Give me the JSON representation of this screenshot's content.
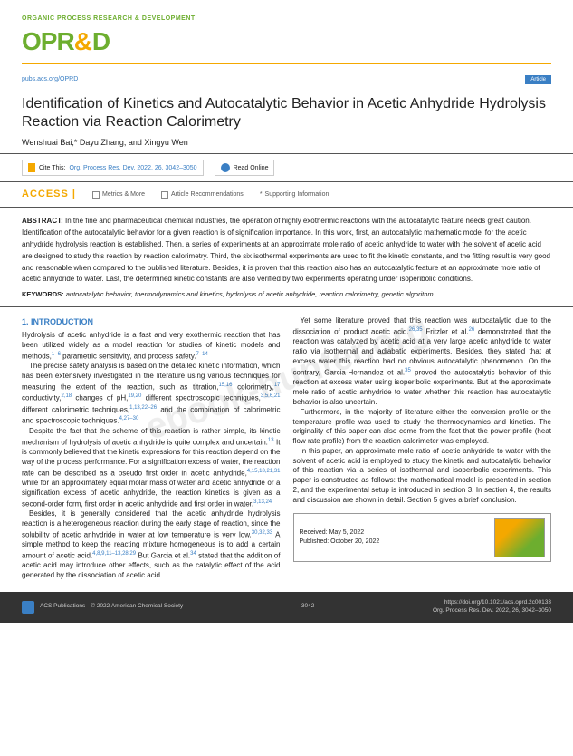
{
  "header": {
    "journal_tag": "ORGANIC PROCESS RESEARCH & DEVELOPMENT",
    "logo_main": "OPR",
    "logo_amp": "&",
    "logo_d": "D",
    "pubs_link": "pubs.acs.org/OPRD",
    "article_tag": "Article"
  },
  "title": "Identification of Kinetics and Autocatalytic Behavior in Acetic Anhydride Hydrolysis Reaction via Reaction Calorimetry",
  "authors": "Wenshuai Bai,* Dayu Zhang, and Xingyu Wen",
  "cite": {
    "label": "Cite This:",
    "ref": "Org. Process Res. Dev. 2022, 26, 3042–3050",
    "read": "Read Online"
  },
  "access": {
    "title": "ACCESS |",
    "metrics": "Metrics & More",
    "recs": "Article Recommendations",
    "si": "Supporting Information"
  },
  "abstract": {
    "label": "ABSTRACT: ",
    "text": "In the fine and pharmaceutical chemical industries, the operation of highly exothermic reactions with the autocatalytic feature needs great caution. Identification of the autocatalytic behavior for a given reaction is of signification importance. In this work, first, an autocatalytic mathematic model for the acetic anhydride hydrolysis reaction is established. Then, a series of experiments at an approximate mole ratio of acetic anhydride to water with the solvent of acetic acid are designed to study this reaction by reaction calorimetry. Third, the six isothermal experiments are used to fit the kinetic constants, and the fitting result is very good and reasonable when compared to the published literature. Besides, it is proven that this reaction also has an autocatalytic feature at an approximate mole ratio of acetic anhydride to water. Last, the determined kinetic constants are also verified by two experiments operating under isoperibolic conditions.",
    "kw_label": "KEYWORDS: ",
    "kw": "autocatalytic behavior, thermodynamics and kinetics, hydrolysis of acetic anhydride, reaction calorimetry, genetic algorithm"
  },
  "body": {
    "section": "1. INTRODUCTION",
    "l1": "Hydrolysis of acetic anhydride is a fast and very exothermic reaction that has been utilized widely as a model reaction for studies of kinetic models and methods,",
    "l1s": "1–6",
    "l1b": " parametric sensitivity, and process safety.",
    "l1s2": "7–14",
    "l2": "The precise safety analysis is based on the detailed kinetic information, which has been extensively investigated in the literature using various techniques for measuring the extent of the reaction, such as titration,",
    "l2s": "15,16",
    "l2b": " colorimetry,",
    "l2s2": "17",
    "l2c": " conductivity,",
    "l2s3": "2,18",
    "l2d": " changes of pH,",
    "l2s4": "19,20",
    "l2e": " different spectroscopic techniques,",
    "l2s5": "3,5,6,21",
    "l2f": " different calorimetric techniques,",
    "l2s6": "1,13,22–26",
    "l2g": " and the combination of calorimetric and spectroscopic techniques.",
    "l2s7": "4,27–30",
    "l3": "Despite the fact that the scheme of this reaction is rather simple, its kinetic mechanism of hydrolysis of acetic anhydride is quite complex and uncertain.",
    "l3s": "13",
    "l3b": " It is commonly believed that the kinetic expressions for this reaction depend on the way of the process performance. For a signification excess of water, the reaction rate can be described as a pseudo first order in acetic anhydride,",
    "l3s2": "4,15,18,21,31",
    "l3c": " while for an approximately equal molar mass of water and acetic anhydride or a signification excess of acetic anhydride, the reaction kinetics is given as a second-order form, first order in acetic anhydride and first order in water.",
    "l3s3": "3,13,24",
    "l4": "Besides, it is generally considered that the acetic anhydride hydrolysis reaction is a heterogeneous reaction during the early stage of reaction, since the solubility of acetic anhydride in water at low temperature is very low.",
    "l4s": "30,32,33",
    "l4b": " A simple method to keep the reacting mixture homogeneous is to add a certain amount of acetic acid.",
    "l4s2": "4,8,9,11–13,28,29",
    "l4c": " But Garcia et al.",
    "l4s3": "34",
    "l4d": " stated that the addition of acetic acid may introduce other effects, such as the catalytic effect of the acid generated by the dissociation of acetic acid.",
    "r1": "Yet some literature proved that this reaction was autocatalytic due to the dissociation of product acetic acid.",
    "r1s": "26,35",
    "r1b": " Fritzler et al.",
    "r1s2": "26",
    "r1c": " demonstrated that the reaction was catalyzed by acetic acid at a very large acetic anhydride to water ratio via isothermal and adiabatic experiments. Besides, they stated that at excess water this reaction had no obvious autocatalytic phenomenon. On the contrary, Garcia-Hernandez et al.",
    "r1s3": "35",
    "r1d": " proved the autocatalytic behavior of this reaction at excess water using isoperibolic experiments. But at the approximate mole ratio of acetic anhydride to water whether this reaction has autocatalytic behavior is also uncertain.",
    "r2": "Furthermore, in the majority of literature either the conversion profile or the temperature profile was used to study the thermodynamics and kinetics. The originality of this paper can also come from the fact that the power profile (heat flow rate profile) from the reaction calorimeter was employed.",
    "r3": "In this paper, an approximate mole ratio of acetic anhydride to water with the solvent of acetic acid is employed to study the kinetic and autocatalytic behavior of this reaction via a series of isothermal and isoperibolic experiments. This paper is constructed as follows: the mathematical model is presented in section 2, and the experimental setup is introduced in section 3. In section 4, the results and discussion are shown in detail. Section 5 gives a brief conclusion.",
    "recv_l": "Received:",
    "recv_v": "May 5, 2022",
    "pub_l": "Published:",
    "pub_v": "October 20, 2022"
  },
  "footer": {
    "pub": "ACS Publications",
    "copy": "© 2022 American Chemical Society",
    "page": "3042",
    "doi": "https://doi.org/10.1021/acs.oprd.2c00133",
    "ref": "Org. Process Res. Dev. 2022, 26, 3042–3050"
  },
  "watermark": "ebook-hunter.org"
}
